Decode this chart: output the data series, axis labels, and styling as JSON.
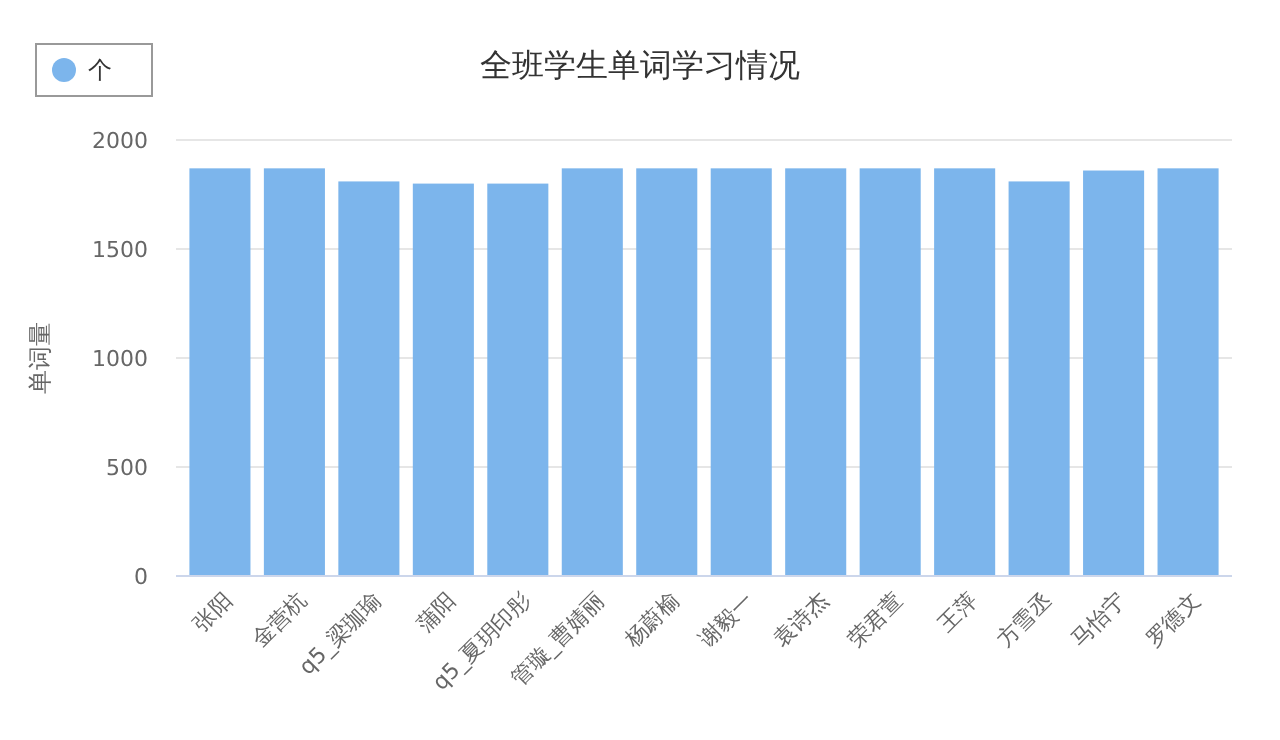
{
  "chart_data": {
    "type": "bar",
    "title": "全班学生单词学习情况",
    "ylabel": "单词量",
    "categories": [
      "张阳",
      "金营杭",
      "q5_梁珈瑜",
      "蒲阳",
      "q5_夏玥印彤",
      "管璇_曹婧丽",
      "杨蔚榆",
      "谢毅一",
      "袁诗杰",
      "荣君萱",
      "王萍",
      "方雪丞",
      "马怡宁",
      "罗德文"
    ],
    "series": [
      {
        "name": "个",
        "color": "#7cb5ec",
        "values": [
          1870,
          1870,
          1810,
          1800,
          1800,
          1870,
          1870,
          1870,
          1870,
          1870,
          1870,
          1810,
          1860,
          1870
        ]
      }
    ],
    "ylim": [
      0,
      2000
    ],
    "yticks": [
      0,
      500,
      1000,
      1500,
      2000
    ],
    "grid": "y",
    "legend": "top left",
    "marker": "circle"
  }
}
